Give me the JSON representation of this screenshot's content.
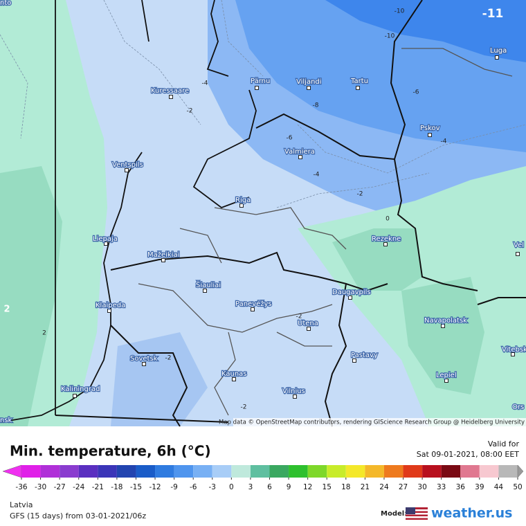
{
  "map": {
    "cities": [
      "Kuressaare",
      "Pärnu",
      "Viljandi",
      "Tartu",
      "Luga",
      "Pskov",
      "Valmiera",
      "Ventspils",
      "Riga",
      "Liepaja",
      "Rezekne",
      "Mažeikiai",
      "Šiauliai",
      "Panevėžys",
      "Daugavpils",
      "Klaipeda",
      "Navapolatsk",
      "Utena",
      "Vitebsk",
      "Pastavy",
      "Sovetsk",
      "Kaunas",
      "Lepiel",
      "Kaliningrad",
      "Vilnius",
      "Vel",
      "Ors",
      "nto",
      "nsk"
    ],
    "contour_labels": [
      -10,
      -11,
      -10,
      -4,
      -8,
      -6,
      -2,
      -6,
      -4,
      -4,
      -2,
      0,
      2,
      2,
      -2,
      -2,
      -2
    ],
    "credit": "Map data © OpenStreetMap contributors, rendering GIScience Research Group @ Heidelberg University"
  },
  "legend": {
    "title": "Min. temperature, 6h (°C)",
    "valid_label": "Valid for",
    "valid_time": "Sat 09-01-2021, 08:00 EET",
    "colorbar": {
      "ticks": [
        -36,
        -30,
        -27,
        -24,
        -21,
        -18,
        -15,
        -12,
        -9,
        -6,
        -3,
        0,
        3,
        6,
        9,
        12,
        15,
        18,
        21,
        24,
        27,
        30,
        33,
        36,
        39,
        44,
        50
      ],
      "colors": [
        "#e020e8",
        "#b030d8",
        "#8a3ccf",
        "#5a2fc0",
        "#3b35b8",
        "#2244b0",
        "#1a5cc8",
        "#2f7be0",
        "#4f95ee",
        "#78b0f4",
        "#a8cdf7",
        "#bfe9dc",
        "#5fbfa0",
        "#3aa860",
        "#2ec02e",
        "#7ed82a",
        "#c8ec2a",
        "#f4e82a",
        "#f4b82a",
        "#ee7a1e",
        "#e03a1a",
        "#b8101e",
        "#7a0a14",
        "#e07890",
        "#f7c8d0",
        "#b8b8b8"
      ],
      "low_color": "#f030f0",
      "high_color": "#9a9a9a"
    },
    "region": "Latvia",
    "run": "GFS (15 days) from 03-01-2021/06z",
    "model_label": "Model:",
    "brand": "weather.us"
  }
}
